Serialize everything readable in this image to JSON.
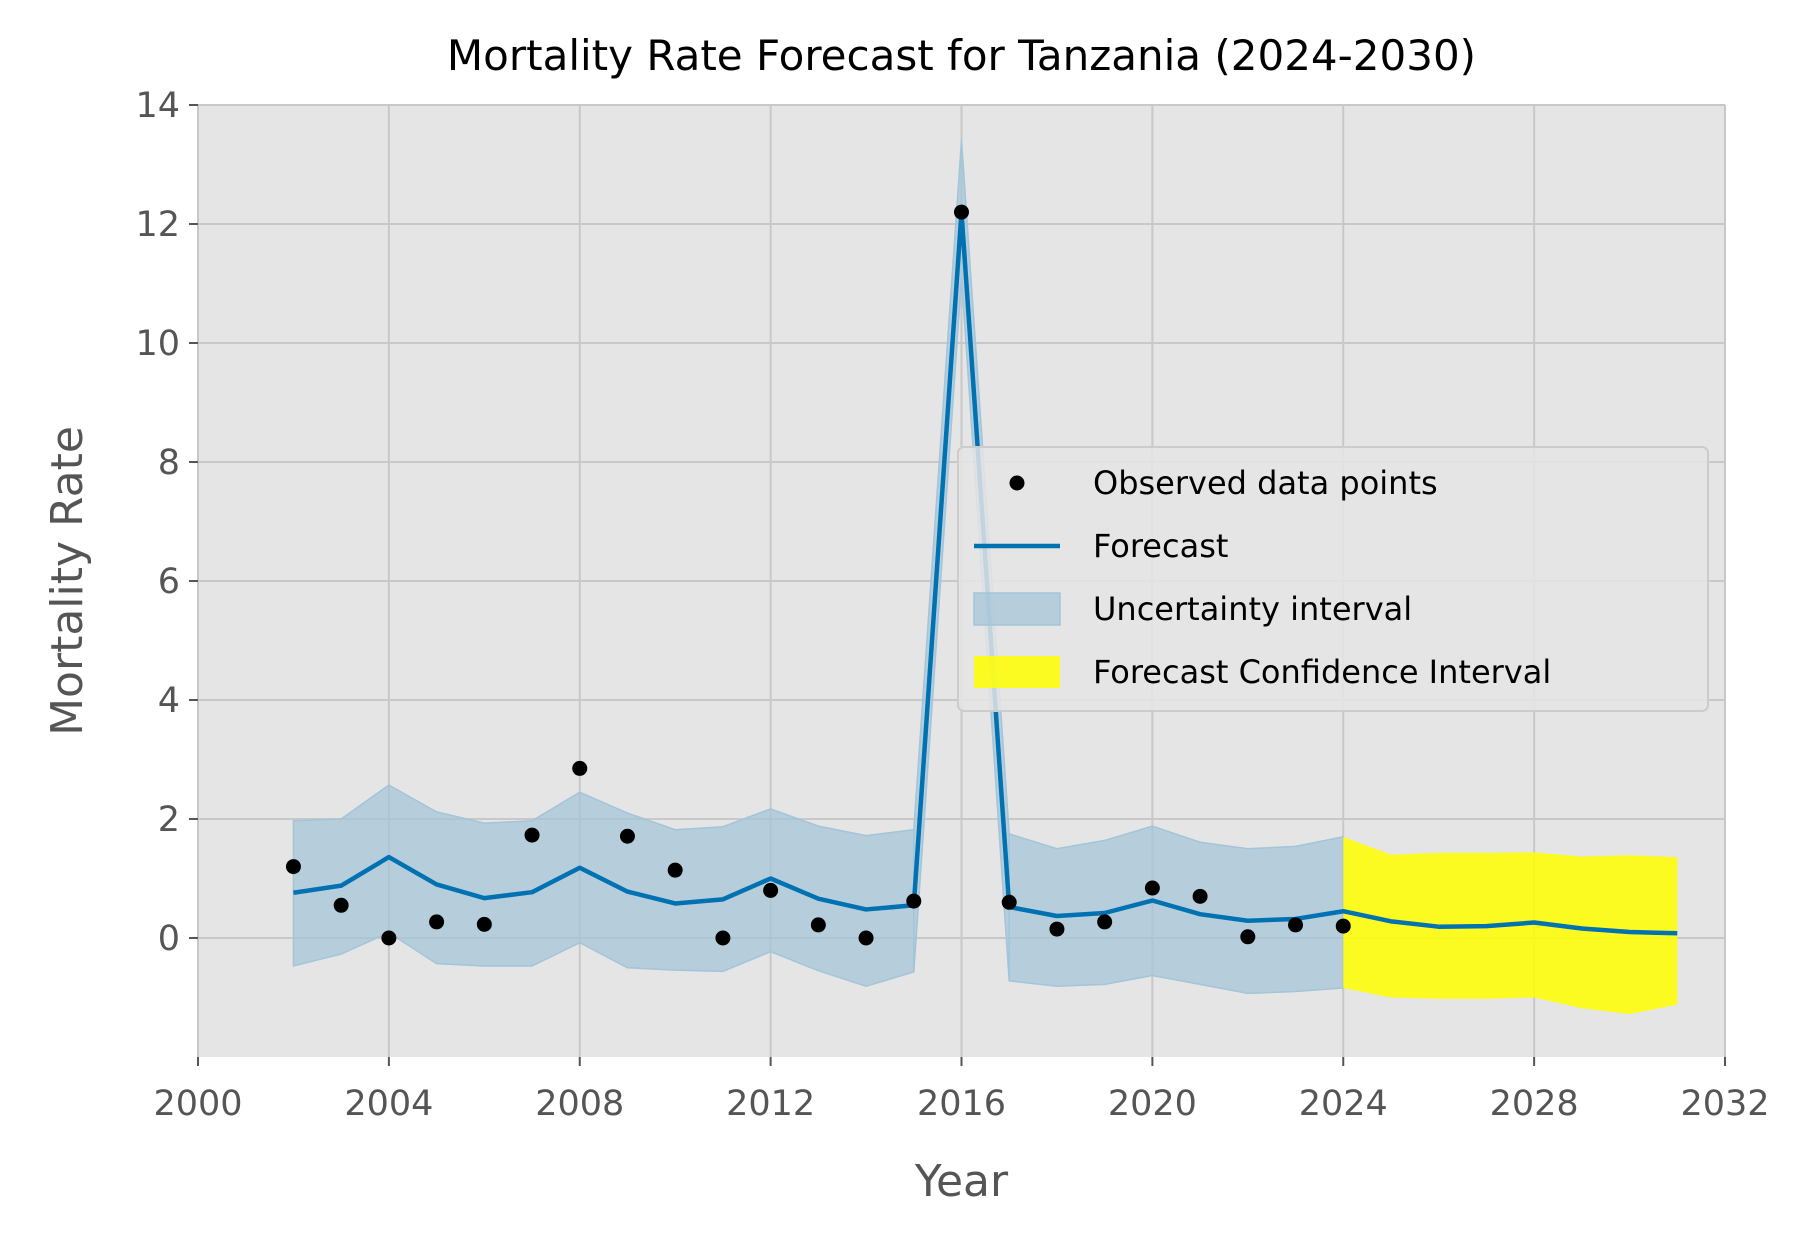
{
  "chart_data": {
    "type": "line",
    "title": "Mortality Rate Forecast for Tanzania (2024-2030)",
    "xlabel": "Year",
    "ylabel": "Mortality Rate",
    "xlim": [
      2000,
      2032
    ],
    "ylim": [
      -2,
      14
    ],
    "xticks": [
      2000,
      2004,
      2008,
      2012,
      2016,
      2020,
      2024,
      2028,
      2032
    ],
    "xtick_labels": [
      "2000",
      "2004",
      "2008",
      "2012",
      "2016",
      "2020",
      "2024",
      "2028",
      "2032"
    ],
    "yticks": [
      0,
      2,
      4,
      6,
      8,
      10,
      12,
      14
    ],
    "ytick_labels": [
      "0",
      "2",
      "4",
      "6",
      "8",
      "10",
      "12",
      "14"
    ],
    "grid": true,
    "legend_position": "center-right",
    "colors": {
      "plot_background": "#e5e5e5",
      "grid": "#c8c8c8",
      "observed": "#000000",
      "forecast": "#0072b2",
      "uncertainty": "#a3c4d9",
      "forecast_ci": "#ffff00"
    },
    "legend": [
      {
        "label": "Observed data points",
        "kind": "marker"
      },
      {
        "label": "Forecast",
        "kind": "line"
      },
      {
        "label": "Uncertainty interval",
        "kind": "band"
      },
      {
        "label": "Forecast Confidence Interval",
        "kind": "ci"
      }
    ],
    "observed": {
      "x": [
        2002,
        2003,
        2004,
        2005,
        2006,
        2007,
        2008,
        2009,
        2010,
        2011,
        2012,
        2013,
        2014,
        2015,
        2016,
        2017,
        2018,
        2019,
        2020,
        2021,
        2022,
        2023,
        2024
      ],
      "y": [
        1.2,
        0.55,
        0.0,
        0.27,
        0.23,
        1.73,
        2.85,
        1.71,
        1.14,
        0.0,
        0.8,
        0.22,
        0.0,
        0.62,
        12.2,
        0.6,
        0.15,
        0.27,
        0.84,
        0.7,
        0.02,
        0.22,
        0.2
      ]
    },
    "forecast": {
      "x": [
        2002,
        2003,
        2004,
        2005,
        2006,
        2007,
        2008,
        2009,
        2010,
        2011,
        2012,
        2013,
        2014,
        2015,
        2016,
        2017,
        2018,
        2019,
        2020,
        2021,
        2022,
        2023,
        2024,
        2025,
        2026,
        2027,
        2028,
        2029,
        2030,
        2031
      ],
      "y": [
        0.76,
        0.88,
        1.36,
        0.9,
        0.67,
        0.77,
        1.18,
        0.78,
        0.58,
        0.65,
        1.0,
        0.66,
        0.48,
        0.55,
        12.2,
        0.52,
        0.37,
        0.42,
        0.63,
        0.4,
        0.29,
        0.32,
        0.45,
        0.28,
        0.19,
        0.2,
        0.26,
        0.16,
        0.1,
        0.08
      ]
    },
    "uncertainty_interval": {
      "segments": [
        {
          "x": [
            2002,
            2003,
            2004,
            2005,
            2006,
            2007,
            2008,
            2009,
            2010,
            2011,
            2012,
            2013,
            2014,
            2015
          ],
          "upper": [
            1.97,
            2.0,
            2.57,
            2.12,
            1.93,
            1.97,
            2.45,
            2.1,
            1.82,
            1.87,
            2.17,
            1.88,
            1.72,
            1.82
          ],
          "lower": [
            -0.47,
            -0.27,
            0.09,
            -0.43,
            -0.47,
            -0.47,
            -0.08,
            -0.5,
            -0.54,
            -0.56,
            -0.23,
            -0.55,
            -0.81,
            -0.57
          ]
        },
        {
          "x": [
            2015,
            2016,
            2017
          ],
          "upper": [
            1.82,
            13.4,
            1.75
          ],
          "lower": [
            -0.57,
            11.1,
            -0.72
          ]
        },
        {
          "x": [
            2017,
            2018,
            2019,
            2020,
            2021,
            2022,
            2023,
            2024
          ],
          "upper": [
            1.75,
            1.5,
            1.64,
            1.88,
            1.61,
            1.5,
            1.54,
            1.7
          ],
          "lower": [
            -0.72,
            -0.81,
            -0.78,
            -0.63,
            -0.78,
            -0.93,
            -0.9,
            -0.84
          ]
        }
      ]
    },
    "forecast_confidence_interval": {
      "x": [
        2024,
        2025,
        2026,
        2027,
        2028,
        2029,
        2030,
        2031
      ],
      "upper": [
        1.7,
        1.4,
        1.43,
        1.43,
        1.44,
        1.37,
        1.39,
        1.36
      ],
      "lower": [
        -0.84,
        -1.0,
        -1.02,
        -1.02,
        -1.0,
        -1.18,
        -1.28,
        -1.12
      ]
    }
  }
}
